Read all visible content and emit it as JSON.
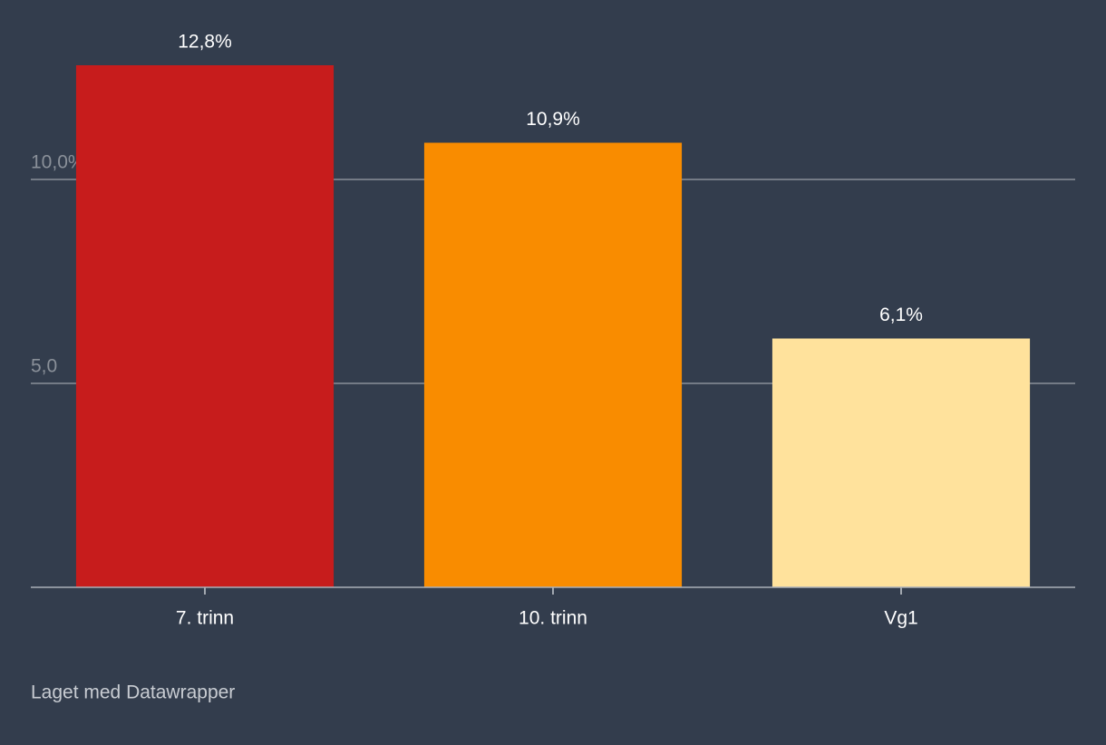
{
  "chart_data": {
    "type": "bar",
    "categories": [
      "7. trinn",
      "10. trinn",
      "Vg1"
    ],
    "values": [
      12.8,
      10.9,
      6.1
    ],
    "value_labels": [
      "12,8%",
      "10,9%",
      "6,1%"
    ],
    "colors": [
      "#c71c1c",
      "#f98c00",
      "#ffe29c"
    ],
    "ylim": [
      0,
      12.8
    ],
    "yticks": [
      {
        "value": 5,
        "label": "5,0"
      },
      {
        "value": 10,
        "label": "10,0%"
      }
    ],
    "grid": true,
    "footer": "Laget med Datawrapper"
  }
}
